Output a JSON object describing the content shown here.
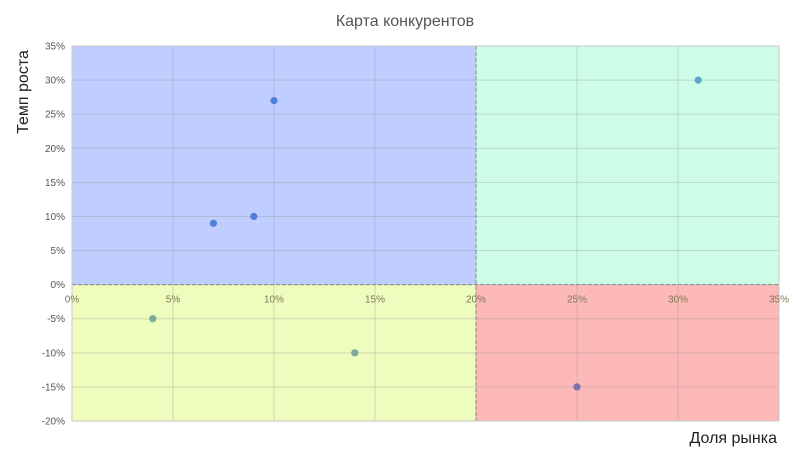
{
  "chart_data": {
    "type": "scatter",
    "title": "Карта конкурентов",
    "xlabel": "Доля рынка",
    "ylabel": "Темп роста",
    "xlim": [
      0,
      0.35
    ],
    "ylim": [
      -0.2,
      0.35
    ],
    "x_ticks": [
      "0%",
      "5%",
      "10%",
      "15%",
      "20%",
      "25%",
      "30%",
      "35%"
    ],
    "x_tick_values": [
      0,
      0.05,
      0.1,
      0.15,
      0.2,
      0.25,
      0.3,
      0.35
    ],
    "y_ticks": [
      "35%",
      "30%",
      "25%",
      "20%",
      "15%",
      "10%",
      "5%",
      "0%",
      "-5%",
      "-10%",
      "-15%",
      "-20%"
    ],
    "y_tick_values": [
      0.35,
      0.3,
      0.25,
      0.2,
      0.15,
      0.1,
      0.05,
      0,
      -0.05,
      -0.1,
      -0.15,
      -0.2
    ],
    "grid": true,
    "quadrant_divider_x": 0.2,
    "quadrant_divider_y": 0,
    "quadrant_colors": {
      "top_left": "#c0ceff",
      "top_right": "#cdfde6",
      "bottom_left": "#eefcbe",
      "bottom_right": "#fdb8b8"
    },
    "points": [
      {
        "x": 0.1,
        "y": 0.27,
        "color": "#4f7fd6"
      },
      {
        "x": 0.09,
        "y": 0.1,
        "color": "#4f7fd6"
      },
      {
        "x": 0.07,
        "y": 0.09,
        "color": "#4f7fd6"
      },
      {
        "x": 0.31,
        "y": 0.3,
        "color": "#5aa7c8"
      },
      {
        "x": 0.04,
        "y": -0.05,
        "color": "#7aab9e"
      },
      {
        "x": 0.14,
        "y": -0.1,
        "color": "#7aab9e"
      },
      {
        "x": 0.25,
        "y": -0.15,
        "color": "#7d6fa8"
      }
    ]
  }
}
